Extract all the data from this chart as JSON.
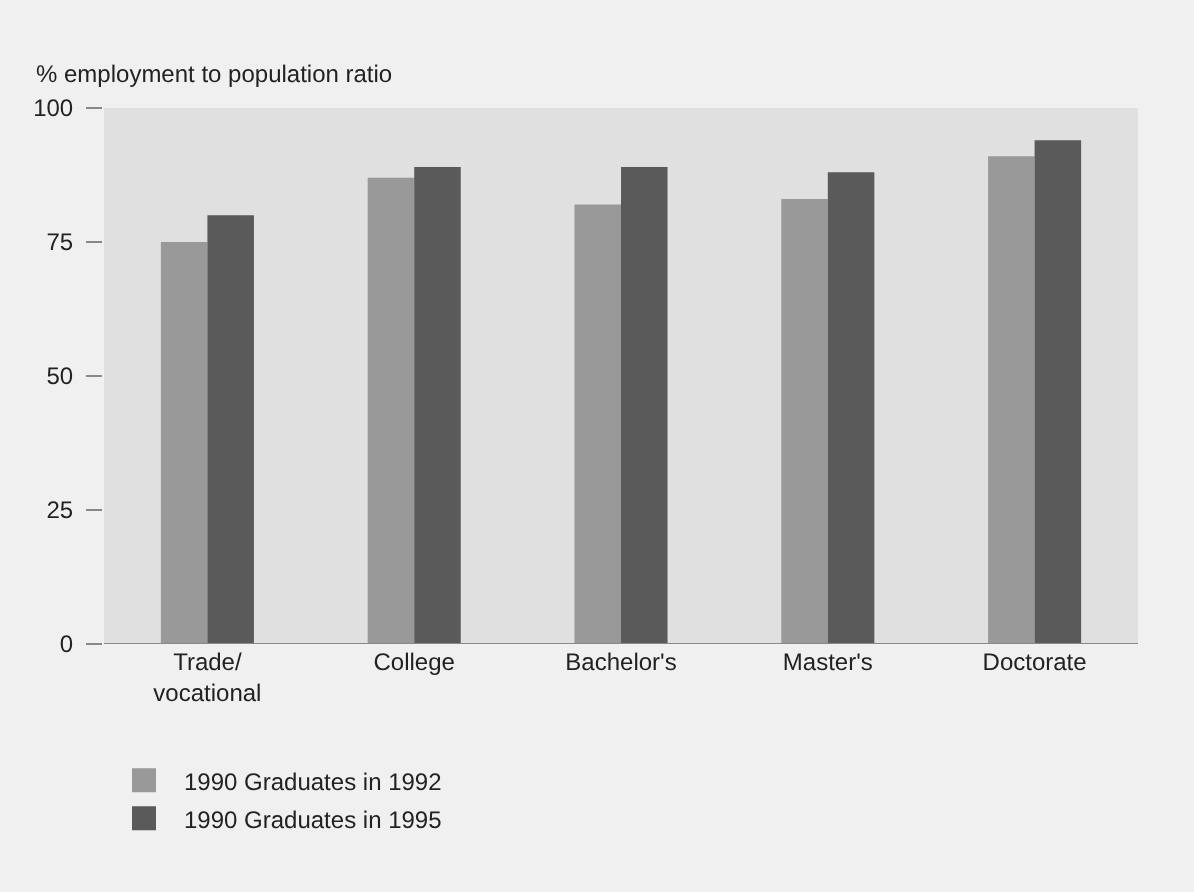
{
  "chart_data": {
    "type": "bar",
    "ylabel": "% employment to population ratio",
    "categories": [
      "Trade/\nvocational",
      "College",
      "Bachelor's",
      "Master's",
      "Doctorate"
    ],
    "series": [
      {
        "name": "1990 Graduates in 1992",
        "color": "#999999",
        "values": [
          75,
          87,
          82,
          83,
          91
        ]
      },
      {
        "name": "1990 Graduates in 1995",
        "color": "#5a5a5a",
        "values": [
          80,
          89,
          89,
          88,
          94
        ]
      }
    ],
    "ylim": [
      0,
      100
    ],
    "yticks": [
      0,
      25,
      50,
      75,
      100
    ],
    "grid": false,
    "legend": "bottom"
  }
}
